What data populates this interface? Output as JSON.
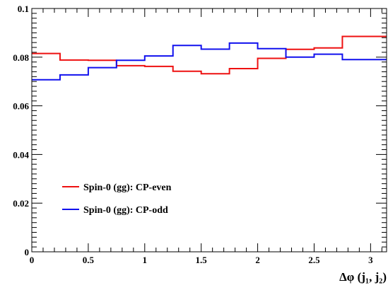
{
  "chart_data": {
    "type": "histogram",
    "x_edges": [
      0,
      0.25,
      0.5,
      0.75,
      1.0,
      1.25,
      1.5,
      1.75,
      2.0,
      2.25,
      2.5,
      2.75,
      3.1416
    ],
    "series": [
      {
        "name": "Spin-0 (gg): CP-even",
        "color": "#ee1111",
        "values": [
          0.0815,
          0.0788,
          0.0787,
          0.0765,
          0.0762,
          0.0742,
          0.0732,
          0.0753,
          0.0795,
          0.0832,
          0.0838,
          0.0885
        ]
      },
      {
        "name": "Spin-0 (gg): CP-odd",
        "color": "#1111ee",
        "values": [
          0.0707,
          0.0727,
          0.0757,
          0.0787,
          0.0805,
          0.0848,
          0.0833,
          0.0858,
          0.0835,
          0.08,
          0.0812,
          0.079
        ]
      }
    ],
    "xlim": [
      0,
      3.1416
    ],
    "ylim": [
      0,
      0.1
    ],
    "x_ticks": [
      {
        "value": 0,
        "label": "0"
      },
      {
        "value": 0.5,
        "label": "0.5"
      },
      {
        "value": 1,
        "label": "1"
      },
      {
        "value": 1.5,
        "label": "1.5"
      },
      {
        "value": 2,
        "label": "2"
      },
      {
        "value": 2.5,
        "label": "2.5"
      },
      {
        "value": 3,
        "label": "3"
      }
    ],
    "y_ticks": [
      {
        "value": 0,
        "label": "0"
      },
      {
        "value": 0.02,
        "label": "0.02"
      },
      {
        "value": 0.04,
        "label": "0.04"
      },
      {
        "value": 0.06,
        "label": "0.06"
      },
      {
        "value": 0.08,
        "label": "0.08"
      },
      {
        "value": 0.1,
        "label": "0.1"
      }
    ],
    "xlabel": "Δφ (j₁, j₂)",
    "ylabel": "",
    "legend_position": "bottom-left",
    "grid": false
  }
}
